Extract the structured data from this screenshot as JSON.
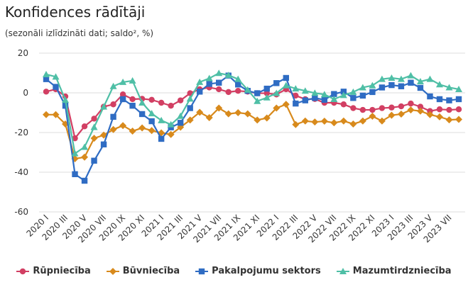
{
  "chart_data": {
    "type": "line",
    "title": "Konfidences rādītāji",
    "subtitle": "(sezonāli izlīdzināti dati; saldo², %)",
    "xlabel": "",
    "ylabel": "",
    "ylim": [
      -60,
      20
    ],
    "yticks": [
      20,
      0,
      -20,
      -40,
      -60
    ],
    "grid": true,
    "legend_position": "bottom",
    "categories": [
      "2020 I",
      "2020 II",
      "2020 III",
      "2020 IV",
      "2020 V",
      "2020 VI",
      "2020 VII",
      "2020 VIII",
      "2020 IX",
      "2020 X",
      "2020 XI",
      "2020 XII",
      "2021 I",
      "2021 II",
      "2021 III",
      "2021 IV",
      "2021 V",
      "2021 VI",
      "2021 VII",
      "2021 VIII",
      "2021 IX",
      "2021 X",
      "2021 XI",
      "2021 XII",
      "2022 I",
      "2022 II",
      "2022 III",
      "2022 IV",
      "2022 V",
      "2022 VI",
      "2022 VII",
      "2022 VIII",
      "2022 IX",
      "2022 X",
      "2022 XI",
      "2022 XII",
      "2023 I",
      "2023 II",
      "2023 III",
      "2023 IV",
      "2023 V",
      "2023 VI",
      "2023 VII",
      "2023 VIII"
    ],
    "series": [
      {
        "name": "Rūpniecība",
        "color": "#d23f63",
        "marker": "circle",
        "values": [
          0.6,
          1.8,
          -1.8,
          -22.9,
          -16.9,
          -13,
          -7,
          -5.8,
          -0.8,
          -3.2,
          -3,
          -3.5,
          -5,
          -6.5,
          -3.8,
          -0.2,
          1.8,
          2.7,
          1.8,
          0.4,
          1,
          0.6,
          -0.2,
          -0.2,
          -0.8,
          1.8,
          -1.4,
          -3.2,
          -3.1,
          -5,
          -5,
          -5.8,
          -7.7,
          -8.6,
          -8.6,
          -7.7,
          -7.4,
          -6.8,
          -5.4,
          -7,
          -9.2,
          -8.3,
          -8.6,
          -8.3
        ]
      },
      {
        "name": "Būvniecība",
        "color": "#d88a1c",
        "marker": "diamond",
        "values": [
          -11,
          -11,
          -15.7,
          -33.2,
          -32.4,
          -22.9,
          -21.3,
          -18.5,
          -16.5,
          -19.3,
          -17.7,
          -19,
          -20.2,
          -21,
          -17.3,
          -13.7,
          -9.8,
          -12.5,
          -7.7,
          -10.6,
          -10,
          -10.6,
          -13.7,
          -12.7,
          -7.7,
          -5.8,
          -16,
          -14.2,
          -14.7,
          -14.3,
          -15.1,
          -14.2,
          -15.7,
          -14.2,
          -11.8,
          -14.2,
          -11.3,
          -10.7,
          -8.6,
          -9.2,
          -11,
          -12.1,
          -13.6,
          -13.4
        ]
      },
      {
        "name": "Pakalpojumu sektors",
        "color": "#2f6cc3",
        "marker": "square",
        "values": [
          6.9,
          3,
          -6.5,
          -41,
          -44.3,
          -34.2,
          -26,
          -12.1,
          -3.2,
          -6.5,
          -10.7,
          -14.3,
          -23.2,
          -17.4,
          -15.1,
          -7.7,
          0.6,
          4.5,
          5.1,
          8.7,
          4.2,
          1,
          -0.2,
          2.1,
          4.9,
          7.5,
          -5.4,
          -3.8,
          -2.6,
          -3.5,
          -0.6,
          0.6,
          -2.6,
          -1.4,
          0.4,
          2.7,
          3.9,
          3.3,
          5.1,
          2.5,
          -1.8,
          -3.2,
          -3.8,
          -3.2
        ]
      },
      {
        "name": "Mazumtirdzniecība",
        "color": "#4fbfa6",
        "marker": "triangle",
        "values": [
          9.3,
          8.1,
          -3.6,
          -30.6,
          -27.3,
          -17.3,
          -7,
          3.3,
          5.4,
          6.1,
          -5,
          -10.4,
          -13.9,
          -16,
          -11.7,
          -3,
          5.4,
          7.3,
          9.9,
          8.9,
          6.9,
          1.5,
          -4.2,
          -2.4,
          -0.2,
          3.7,
          2.1,
          1,
          -0.1,
          -0.8,
          -3.2,
          -1.2,
          0.4,
          2.7,
          3.7,
          6.9,
          7.5,
          6.9,
          8.7,
          5.7,
          6.9,
          4.2,
          2.7,
          1.8
        ]
      }
    ]
  }
}
